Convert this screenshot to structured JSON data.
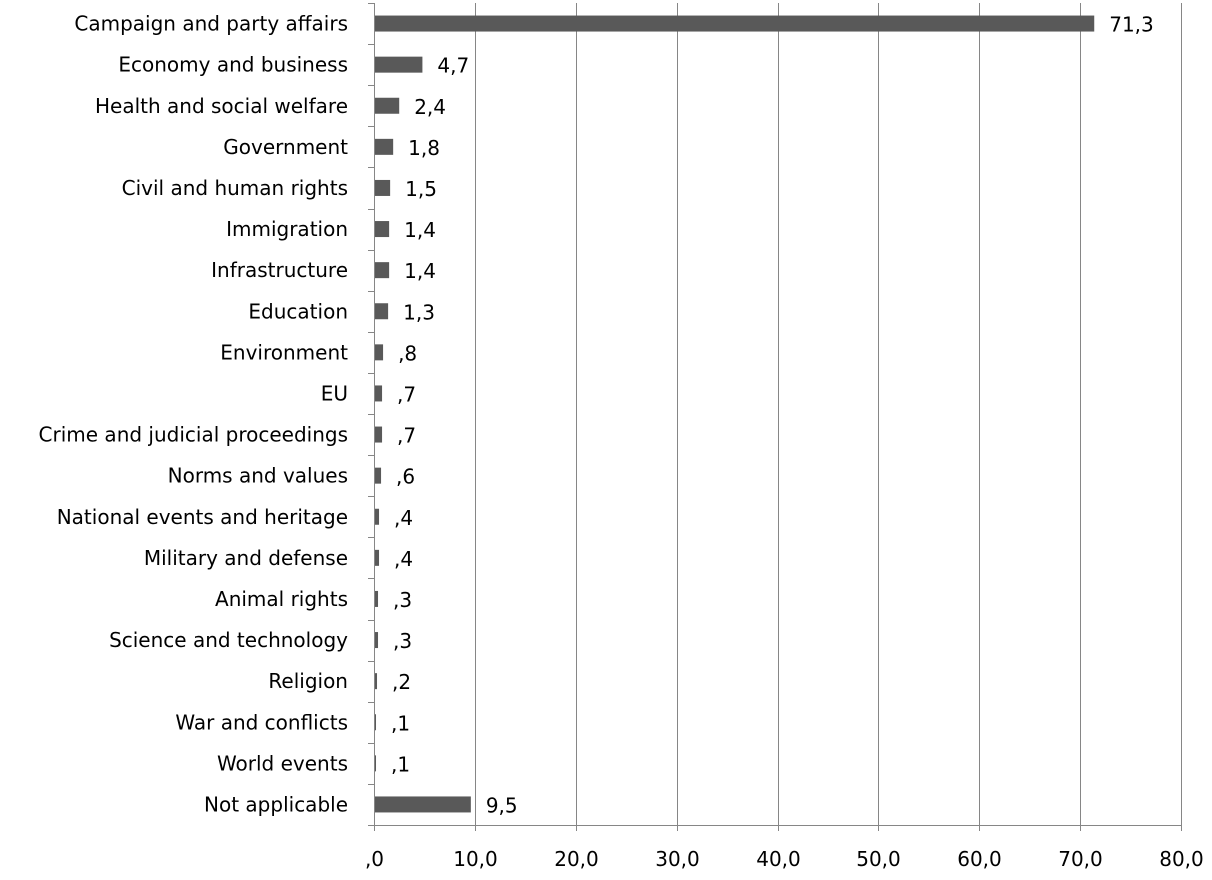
{
  "chart_data": {
    "type": "bar",
    "orientation": "horizontal",
    "categories": [
      "Campaign and party affairs",
      "Economy and business",
      "Health and social welfare",
      "Government",
      "Civil and human rights",
      "Immigration",
      "Infrastructure",
      "Education",
      "Environment",
      "EU",
      "Crime and judicial proceedings",
      "Norms and values",
      "National events and heritage",
      "Military and defense",
      "Animal rights",
      "Science and technology",
      "Religion",
      "War and conflicts",
      "World events",
      "Not applicable"
    ],
    "values": [
      71.3,
      4.7,
      2.4,
      1.8,
      1.5,
      1.4,
      1.4,
      1.3,
      0.8,
      0.7,
      0.7,
      0.6,
      0.4,
      0.4,
      0.3,
      0.3,
      0.2,
      0.1,
      0.1,
      9.5
    ],
    "value_labels": [
      "71,3",
      "4,7",
      "2,4",
      "1,8",
      "1,5",
      "1,4",
      "1,4",
      "1,3",
      ",8",
      ",7",
      ",7",
      ",6",
      ",4",
      ",4",
      ",3",
      ",3",
      ",2",
      ",1",
      ",1",
      "9,5"
    ],
    "x_ticks": [
      0,
      10,
      20,
      30,
      40,
      50,
      60,
      70,
      80
    ],
    "x_tick_labels": [
      ",0",
      "10,0",
      "20,0",
      "30,0",
      "40,0",
      "50,0",
      "60,0",
      "70,0",
      "80,0"
    ],
    "xlim": [
      0,
      80
    ],
    "grid": "vertical",
    "legend": "none",
    "bar_color": "#595959",
    "grid_color": "#868686",
    "title": "",
    "xlabel": "",
    "ylabel": ""
  }
}
